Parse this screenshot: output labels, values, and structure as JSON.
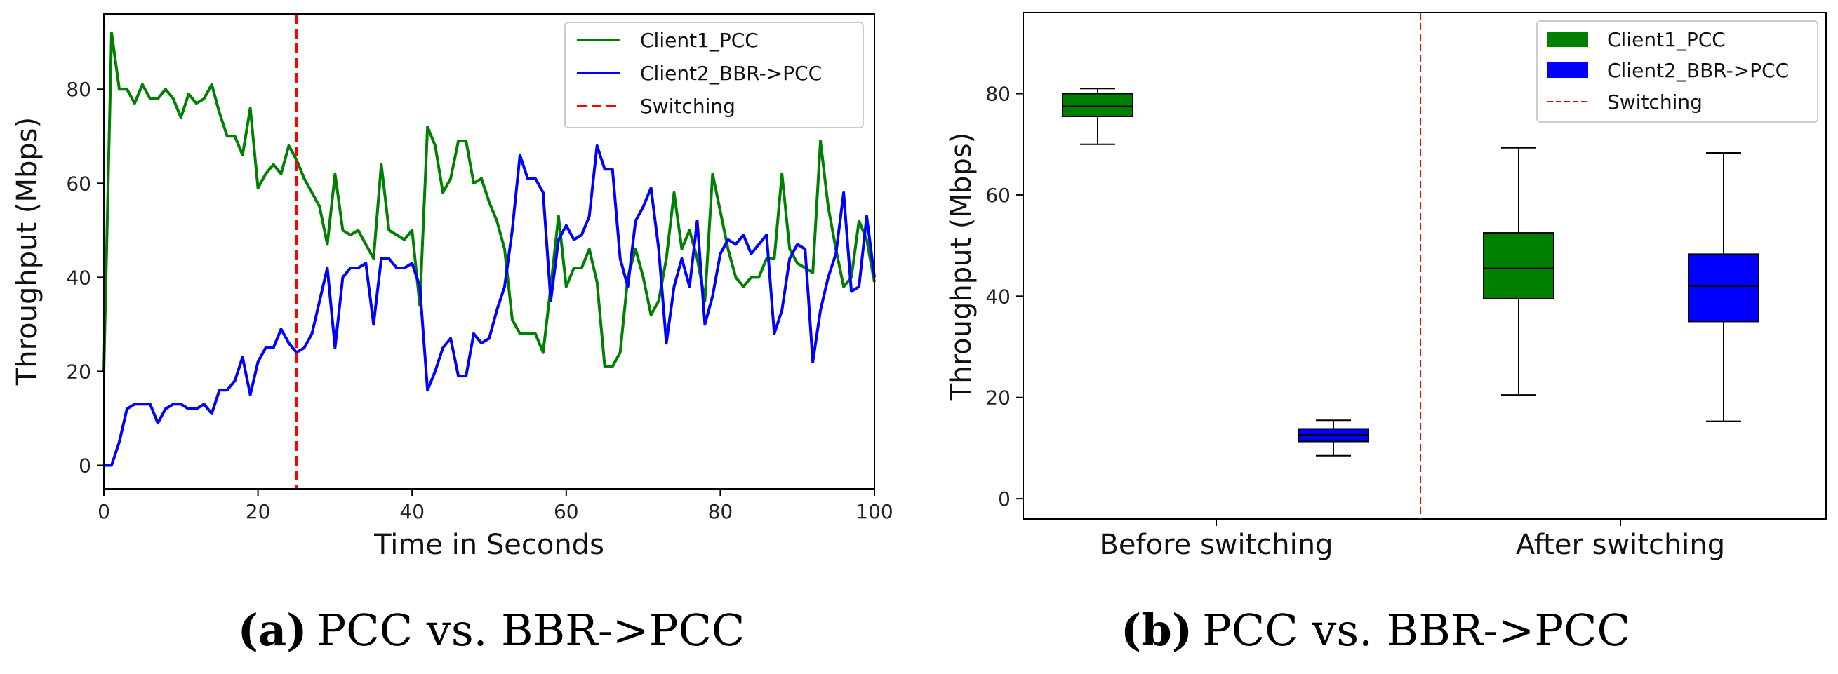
{
  "chart_data": [
    {
      "type": "line",
      "xlabel": "Time in Seconds",
      "ylabel": "Throughput (Mbps)",
      "xlim": [
        0,
        100
      ],
      "ylim": [
        -5,
        96
      ],
      "xticks": [
        0,
        20,
        40,
        60,
        80,
        100
      ],
      "yticks": [
        0,
        20,
        40,
        60,
        80
      ],
      "grid": false,
      "legend_position": "top-right",
      "colors": {
        "Client1_PCC": "#008000",
        "Client2_BBR->PCC": "#0000ff",
        "Switching": "#ff0000"
      },
      "switch_x": 25,
      "switch_label": "Switching",
      "series": [
        {
          "name": "Client1_PCC",
          "x": [
            0,
            1,
            2,
            3,
            4,
            5,
            6,
            7,
            8,
            9,
            10,
            11,
            12,
            13,
            14,
            15,
            16,
            17,
            18,
            19,
            20,
            21,
            22,
            23,
            24,
            25,
            26,
            27,
            28,
            29,
            30,
            31,
            32,
            33,
            34,
            35,
            36,
            37,
            38,
            39,
            40,
            41,
            42,
            43,
            44,
            45,
            46,
            47,
            48,
            49,
            50,
            51,
            52,
            53,
            54,
            55,
            56,
            57,
            58,
            59,
            60,
            61,
            62,
            63,
            64,
            65,
            66,
            67,
            68,
            69,
            70,
            71,
            72,
            73,
            74,
            75,
            76,
            77,
            78,
            79,
            80,
            81,
            82,
            83,
            84,
            85,
            86,
            87,
            88,
            89,
            90,
            91,
            92,
            93,
            94,
            95,
            96,
            97,
            98,
            99,
            100
          ],
          "values": [
            20,
            92,
            80,
            80,
            77,
            81,
            78,
            78,
            80,
            78,
            74,
            79,
            77,
            78,
            81,
            75,
            70,
            70,
            66,
            76,
            59,
            62,
            64,
            62,
            68,
            65,
            61,
            58,
            55,
            47,
            62,
            50,
            49,
            50,
            47,
            44,
            64,
            50,
            49,
            48,
            50,
            34,
            72,
            68,
            58,
            61,
            69,
            69,
            60,
            61,
            56,
            52,
            46,
            31,
            28,
            28,
            28,
            24,
            38,
            53,
            38,
            42,
            42,
            46,
            39,
            21,
            21,
            24,
            40,
            46,
            40,
            32,
            35,
            44,
            58,
            46,
            50,
            44,
            35,
            62,
            54,
            46,
            40,
            38,
            40,
            40,
            44,
            44,
            62,
            46,
            43,
            42,
            41,
            69,
            55,
            46,
            38,
            40,
            52,
            48,
            39
          ]
        },
        {
          "name": "Client2_BBR->PCC",
          "x": [
            0,
            1,
            2,
            3,
            4,
            5,
            6,
            7,
            8,
            9,
            10,
            11,
            12,
            13,
            14,
            15,
            16,
            17,
            18,
            19,
            20,
            21,
            22,
            23,
            24,
            25,
            26,
            27,
            28,
            29,
            30,
            31,
            32,
            33,
            34,
            35,
            36,
            37,
            38,
            39,
            40,
            41,
            42,
            43,
            44,
            45,
            46,
            47,
            48,
            49,
            50,
            51,
            52,
            53,
            54,
            55,
            56,
            57,
            58,
            59,
            60,
            61,
            62,
            63,
            64,
            65,
            66,
            67,
            68,
            69,
            70,
            71,
            72,
            73,
            74,
            75,
            76,
            77,
            78,
            79,
            80,
            81,
            82,
            83,
            84,
            85,
            86,
            87,
            88,
            89,
            90,
            91,
            92,
            93,
            94,
            95,
            96,
            97,
            98,
            99,
            100
          ],
          "values": [
            0,
            0,
            5,
            12,
            13,
            13,
            13,
            9,
            12,
            13,
            13,
            12,
            12,
            13,
            11,
            16,
            16,
            18,
            23,
            15,
            22,
            25,
            25,
            29,
            26,
            24,
            25,
            28,
            35,
            42,
            25,
            40,
            42,
            42,
            43,
            30,
            44,
            44,
            42,
            42,
            43,
            38,
            16,
            20,
            25,
            27,
            19,
            19,
            28,
            26,
            27,
            33,
            38,
            50,
            66,
            61,
            61,
            58,
            35,
            48,
            51,
            48,
            49,
            53,
            68,
            63,
            63,
            44,
            38,
            52,
            55,
            59,
            46,
            26,
            38,
            44,
            38,
            52,
            30,
            36,
            45,
            48,
            47,
            49,
            45,
            47,
            49,
            28,
            33,
            44,
            47,
            46,
            22,
            33,
            40,
            45,
            58,
            37,
            38,
            53,
            40
          ]
        }
      ]
    },
    {
      "type": "box",
      "ylabel": "Throughput (Mbps)",
      "ylim": [
        -4,
        96
      ],
      "yticks": [
        0,
        20,
        40,
        60,
        80
      ],
      "categories": [
        "Before switching",
        "After switching"
      ],
      "grid": false,
      "legend_position": "top-right",
      "legend": [
        "Client1_PCC",
        "Client2_BBR->PCC",
        "Switching"
      ],
      "colors": {
        "Client1_PCC": "#008000",
        "Client2_BBR->PCC": "#0000ff",
        "Switching": "#ff0000"
      },
      "boxes": [
        {
          "series": "Client1_PCC",
          "category": "Before switching",
          "min": 70,
          "q1": 75.5,
          "median": 77.5,
          "q3": 80,
          "max": 81
        },
        {
          "series": "Client2_BBR->PCC",
          "category": "Before switching",
          "min": 8.5,
          "q1": 11.3,
          "median": 12.6,
          "q3": 13.8,
          "max": 15.5
        },
        {
          "series": "Client1_PCC",
          "category": "After switching",
          "min": 20.5,
          "q1": 39.5,
          "median": 45.5,
          "q3": 52.5,
          "max": 69.3
        },
        {
          "series": "Client2_BBR->PCC",
          "category": "After switching",
          "min": 15.3,
          "q1": 35,
          "median": 42,
          "q3": 48.3,
          "max": 68.3
        }
      ]
    }
  ],
  "captions": [
    {
      "letter": "(a)",
      "text": "PCC vs. BBR->PCC"
    },
    {
      "letter": "(b)",
      "text": "PCC vs. BBR->PCC"
    }
  ]
}
